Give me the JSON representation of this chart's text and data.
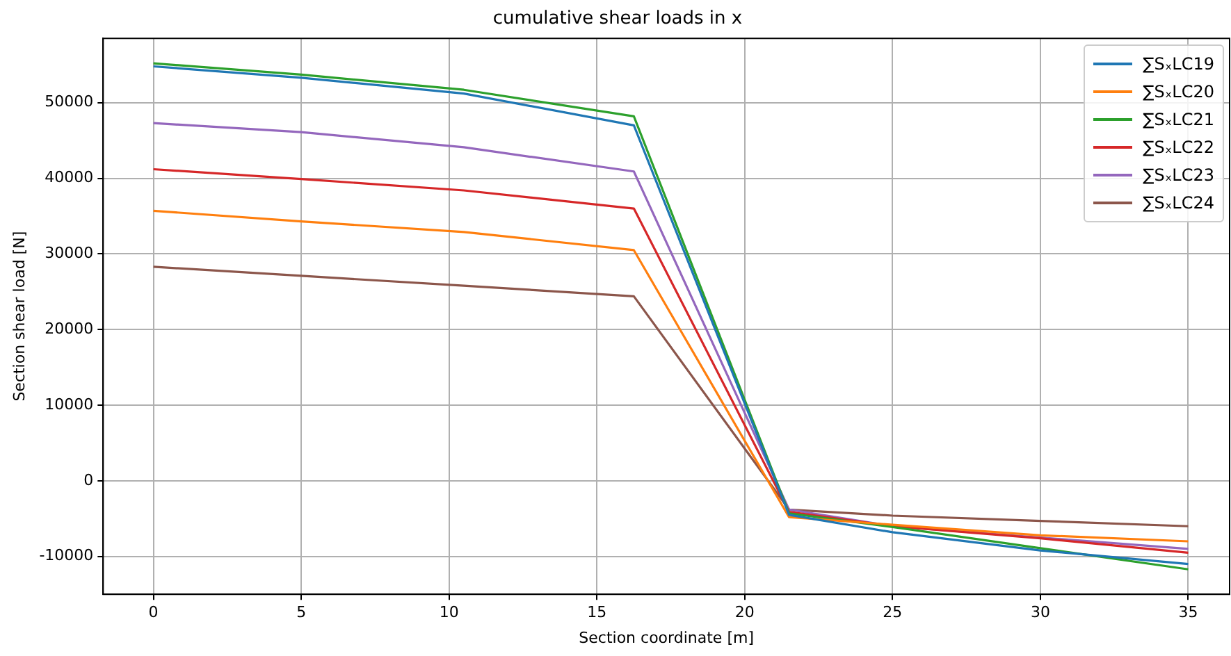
{
  "chart_data": {
    "type": "line",
    "title": "cumulative shear loads in x",
    "xlabel": "Section coordinate [m]",
    "ylabel": "Section shear load [N]",
    "xlim": [
      -1.7,
      36.4
    ],
    "xticks": [
      0,
      5,
      10,
      15,
      20,
      25,
      30,
      35
    ],
    "ylim": [
      -15000,
      58500
    ],
    "yticks": [
      -10000,
      0,
      10000,
      20000,
      30000,
      40000,
      50000
    ],
    "grid": true,
    "legend": "top right",
    "marker": "none",
    "line_style": "solid",
    "x": [
      0,
      5,
      10.5,
      16.25,
      21.5,
      25,
      30,
      35
    ],
    "series": [
      {
        "name": "∑SₓLC19",
        "color": "#1f77b4",
        "values": [
          54800,
          53300,
          51200,
          47000,
          -4500,
          -6800,
          -9200,
          -11000
        ]
      },
      {
        "name": "∑SₓLC20",
        "color": "#ff7f0e",
        "values": [
          35700,
          34300,
          32900,
          30500,
          -4800,
          -5800,
          -7200,
          -8000
        ]
      },
      {
        "name": "∑SₓLC21",
        "color": "#2ca02c",
        "values": [
          55200,
          53700,
          51700,
          48200,
          -4300,
          -6100,
          -8900,
          -11700
        ]
      },
      {
        "name": "∑SₓLC22",
        "color": "#d62728",
        "values": [
          41200,
          39900,
          38400,
          36000,
          -4100,
          -6000,
          -7600,
          -9500
        ]
      },
      {
        "name": "∑SₓLC23",
        "color": "#9467bd",
        "values": [
          47300,
          46100,
          44100,
          40900,
          -3800,
          -6000,
          -7500,
          -9000
        ]
      },
      {
        "name": "∑SₓLC24",
        "color": "#8c564b",
        "values": [
          28300,
          27100,
          25800,
          24400,
          -3800,
          -4600,
          -5300,
          -6000
        ]
      }
    ]
  }
}
